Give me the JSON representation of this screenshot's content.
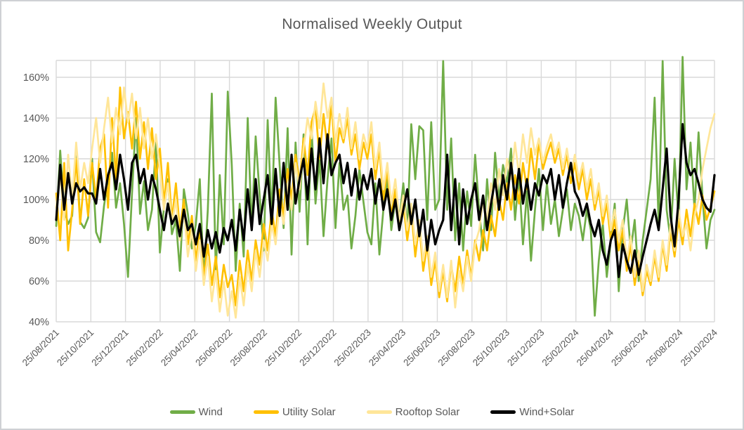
{
  "window": {
    "background": "#FFFFFF",
    "border_color": "#CFD0D4"
  },
  "chart": {
    "title": "Normalised Weekly Output",
    "title_color": "#595959",
    "gridline_color": "#D9D9D9",
    "axis_label_color": "#595959",
    "legend_text_color": "#595959"
  },
  "chart_data": {
    "type": "line",
    "title": "Normalised Weekly Output",
    "xlabel": "",
    "ylabel": "",
    "x_unit": "weekly",
    "grid": true,
    "legend_position": "bottom",
    "ylim": [
      40,
      168
    ],
    "y_ticks": [
      40,
      60,
      80,
      100,
      120,
      140,
      160
    ],
    "y_tick_suffix": "%",
    "x_tick_labels": [
      "25/08/2021",
      "25/10/2021",
      "25/12/2021",
      "25/02/2022",
      "25/04/2022",
      "25/06/2022",
      "25/08/2022",
      "25/10/2022",
      "25/12/2022",
      "25/02/2023",
      "25/04/2023",
      "25/06/2023",
      "25/08/2023",
      "25/10/2023",
      "25/12/2023",
      "25/02/2024",
      "25/04/2024",
      "25/06/2024",
      "25/08/2024",
      "25/10/2024"
    ],
    "series": [
      {
        "name": "Wind",
        "color": "#70AD47",
        "values": [
          87,
          124,
          95,
          88,
          92,
          125,
          89,
          86,
          91,
          120,
          84,
          79,
          97,
          110,
          123,
          96,
          108,
          88,
          62,
          103,
          140,
          93,
          109,
          85,
          95,
          128,
          74,
          96,
          110,
          83,
          90,
          65,
          105,
          93,
          76,
          88,
          110,
          60,
          95,
          152,
          64,
          112,
          78,
          153,
          117,
          65,
          98,
          72,
          140,
          85,
          131,
          102,
          75,
          139,
          90,
          150,
          117,
          86,
          135,
          73,
          128,
          94,
          132,
          78,
          135,
          98,
          120,
          82,
          110,
          130,
          86,
          118,
          95,
          102,
          76,
          92,
          115,
          99,
          84,
          78,
          108,
          73,
          95,
          110,
          85,
          100,
          90,
          108,
          85,
          137,
          110,
          136,
          134,
          90,
          138,
          95,
          100,
          168,
          95,
          130,
          80,
          108,
          75,
          104,
          87,
          122,
          95,
          75,
          110,
          85,
          123,
          100,
          117,
          108,
          125,
          90,
          112,
          78,
          104,
          70,
          95,
          115,
          85,
          108,
          88,
          100,
          82,
          95,
          105,
          85,
          98,
          92,
          80,
          95,
          85,
          43,
          70,
          88,
          62,
          80,
          98,
          55,
          85,
          100,
          75,
          90,
          60,
          80,
          95,
          110,
          150,
          88,
          168,
          95,
          80,
          120,
          90,
          170,
          105,
          128,
          95,
          133,
          101,
          76,
          90,
          95
        ]
      },
      {
        "name": "Utility Solar",
        "color": "#FFC000",
        "values": [
          103,
          80,
          118,
          75,
          95,
          120,
          88,
          110,
          92,
          118,
          100,
          125,
          132,
          96,
          140,
          110,
          155,
          130,
          143,
          125,
          148,
          120,
          138,
          115,
          135,
          110,
          125,
          98,
          118,
          90,
          108,
          85,
          100,
          78,
          92,
          70,
          85,
          62,
          78,
          58,
          72,
          52,
          68,
          57,
          63,
          48,
          70,
          55,
          75,
          60,
          80,
          68,
          88,
          75,
          95,
          82,
          105,
          92,
          115,
          100,
          122,
          108,
          130,
          112,
          138,
          145,
          120,
          142,
          125,
          148,
          118,
          135,
          128,
          140,
          122,
          132,
          115,
          128,
          120,
          132,
          110,
          125,
          100,
          115,
          92,
          105,
          85,
          98,
          80,
          95,
          72,
          88,
          65,
          78,
          58,
          70,
          52,
          65,
          50,
          68,
          55,
          72,
          58,
          75,
          62,
          80,
          70,
          85,
          75,
          92,
          82,
          100,
          90,
          108,
          95,
          112,
          98,
          118,
          105,
          125,
          110,
          128,
          115,
          122,
          128,
          118,
          125,
          112,
          122,
          108,
          118,
          105,
          115,
          100,
          110,
          95,
          105,
          88,
          98,
          80,
          90,
          75,
          85,
          65,
          78,
          58,
          70,
          53,
          65,
          58,
          72,
          60,
          78,
          65,
          85,
          72,
          90,
          78,
          95,
          82,
          98,
          88,
          102,
          90,
          96,
          104
        ]
      },
      {
        "name": "Rooftop Solar",
        "color": "#FFE699",
        "values": [
          96,
          112,
          90,
          122,
          100,
          128,
          105,
          118,
          108,
          125,
          140,
          118,
          135,
          150,
          128,
          145,
          132,
          155,
          138,
          152,
          130,
          145,
          125,
          140,
          120,
          132,
          115,
          95,
          108,
          88,
          100,
          80,
          95,
          72,
          85,
          65,
          80,
          58,
          72,
          50,
          65,
          45,
          60,
          43,
          55,
          42,
          62,
          48,
          68,
          55,
          75,
          62,
          80,
          70,
          88,
          78,
          98,
          88,
          108,
          95,
          118,
          105,
          125,
          140,
          130,
          148,
          135,
          157,
          140,
          150,
          128,
          142,
          130,
          145,
          125,
          138,
          120,
          132,
          125,
          138,
          115,
          128,
          105,
          118,
          98,
          110,
          90,
          102,
          85,
          98,
          78,
          90,
          70,
          82,
          62,
          74,
          55,
          68,
          52,
          70,
          47,
          65,
          55,
          72,
          60,
          78,
          85,
          100,
          90,
          108,
          95,
          115,
          102,
          120,
          110,
          128,
          112,
          132,
          118,
          135,
          122,
          130,
          118,
          126,
          132,
          122,
          128,
          115,
          125,
          112,
          122,
          110,
          118,
          105,
          115,
          98,
          108,
          92,
          102,
          85,
          95,
          80,
          90,
          70,
          82,
          62,
          75,
          55,
          68,
          60,
          75,
          62,
          80,
          68,
          88,
          75,
          95,
          82,
          88,
          75,
          92,
          100,
          115,
          125,
          135,
          142
        ]
      },
      {
        "name": "Wind+Solar",
        "color": "#000000",
        "values": [
          90,
          117,
          95,
          113,
          98,
          108,
          104,
          106,
          103,
          103,
          98,
          115,
          100,
          112,
          118,
          105,
          122,
          110,
          95,
          118,
          122,
          108,
          115,
          100,
          112,
          105,
          95,
          85,
          98,
          88,
          92,
          82,
          95,
          85,
          88,
          78,
          88,
          72,
          85,
          76,
          84,
          74,
          86,
          80,
          90,
          75,
          95,
          80,
          105,
          85,
          110,
          88,
          100,
          112,
          88,
          115,
          92,
          118,
          95,
          122,
          98,
          110,
          120,
          100,
          125,
          105,
          130,
          108,
          132,
          112,
          118,
          122,
          108,
          118,
          102,
          115,
          100,
          112,
          105,
          115,
          98,
          110,
          95,
          105,
          90,
          100,
          85,
          95,
          105,
          88,
          100,
          82,
          95,
          75,
          90,
          78,
          85,
          90,
          122,
          85,
          110,
          78,
          105,
          88,
          100,
          108,
          90,
          102,
          85,
          98,
          110,
          95,
          112,
          100,
          118,
          100,
          115,
          98,
          110,
          95,
          108,
          102,
          112,
          108,
          115,
          100,
          112,
          96,
          108,
          118,
          104,
          100,
          92,
          98,
          88,
          82,
          90,
          75,
          68,
          80,
          85,
          62,
          78,
          70,
          64,
          75,
          63,
          72,
          80,
          88,
          95,
          85,
          105,
          125,
          92,
          77,
          100,
          137,
          118,
          112,
          115,
          108,
          100,
          96,
          94,
          112
        ]
      }
    ]
  }
}
